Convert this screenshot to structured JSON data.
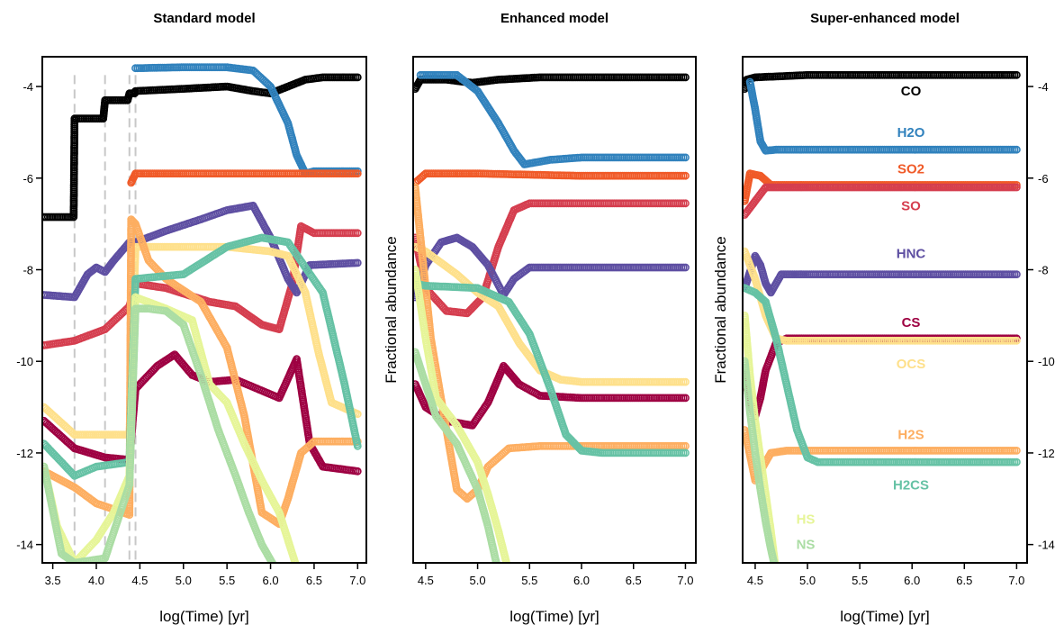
{
  "chart_data": [
    {
      "type": "line",
      "title": "Standard model",
      "xlabel": "log(Time) [yr]",
      "ylabel": "",
      "xlim": [
        3.38,
        7.1
      ],
      "ylim": [
        -14.4,
        -3.35
      ],
      "xticks": [
        3.5,
        4.0,
        4.5,
        5.0,
        5.5,
        6.0,
        6.5,
        7.0
      ],
      "xtick_labels": [
        "3.5",
        "4.0",
        "4.5",
        "5.0",
        "5.5",
        "6.0",
        "6.5",
        "7.0"
      ],
      "yticks": [
        -4,
        -6,
        -8,
        -10,
        -12,
        -14
      ],
      "ytick_labels": [
        "-4",
        "-6",
        "-8",
        "-10",
        "-12",
        "-14"
      ],
      "yaxis_side": "left",
      "vlines": [
        3.75,
        4.1,
        4.38,
        4.45
      ],
      "series": [
        {
          "species": "CO",
          "x": [
            3.4,
            3.74,
            3.75,
            4.08,
            4.1,
            4.36,
            4.38,
            4.44,
            4.45,
            5.0,
            5.5,
            5.8,
            6.0,
            6.2,
            6.4,
            6.6,
            7.0
          ],
          "y": [
            -6.85,
            -6.85,
            -4.7,
            -4.7,
            -4.3,
            -4.3,
            -4.15,
            -4.15,
            -4.1,
            -4.05,
            -4.0,
            -4.1,
            -4.15,
            -4.0,
            -3.85,
            -3.8,
            -3.8
          ]
        },
        {
          "species": "H2O",
          "x": [
            4.45,
            5.0,
            5.5,
            5.8,
            6.0,
            6.2,
            6.3,
            6.4,
            6.5,
            7.0
          ],
          "y": [
            -3.6,
            -3.58,
            -3.58,
            -3.65,
            -4.0,
            -4.8,
            -5.5,
            -5.9,
            -5.85,
            -5.85
          ]
        },
        {
          "species": "SO2",
          "x": [
            4.4,
            4.45,
            5.0,
            6.0,
            7.0
          ],
          "y": [
            -6.1,
            -5.9,
            -5.9,
            -5.9,
            -5.9
          ]
        },
        {
          "species": "SO",
          "x": [
            3.4,
            3.75,
            4.1,
            4.38,
            4.45,
            4.8,
            5.3,
            5.6,
            5.9,
            6.1,
            6.25,
            6.35,
            6.5,
            7.0
          ],
          "y": [
            -9.65,
            -9.55,
            -9.3,
            -8.8,
            -8.3,
            -8.4,
            -8.7,
            -8.8,
            -9.2,
            -9.3,
            -8.3,
            -7.05,
            -7.2,
            -7.2
          ]
        },
        {
          "species": "HNC",
          "x": [
            3.4,
            3.75,
            3.9,
            4.0,
            4.1,
            4.2,
            4.38,
            4.45,
            4.8,
            5.2,
            5.5,
            5.8,
            6.0,
            6.2,
            6.3,
            6.45,
            7.0
          ],
          "y": [
            -8.55,
            -8.6,
            -8.1,
            -7.95,
            -8.05,
            -7.8,
            -7.4,
            -7.4,
            -7.15,
            -6.9,
            -6.7,
            -6.6,
            -7.3,
            -8.2,
            -8.5,
            -7.9,
            -7.85
          ]
        },
        {
          "species": "CS",
          "x": [
            3.4,
            3.75,
            4.1,
            4.38,
            4.45,
            4.7,
            4.9,
            5.1,
            5.3,
            5.6,
            5.85,
            6.1,
            6.3,
            6.45,
            6.6,
            7.0
          ],
          "y": [
            -11.3,
            -11.9,
            -12.1,
            -12.15,
            -10.6,
            -10.1,
            -9.85,
            -10.3,
            -10.45,
            -10.4,
            -10.6,
            -10.8,
            -9.95,
            -11.8,
            -12.3,
            -12.4
          ]
        },
        {
          "species": "OCS",
          "x": [
            3.4,
            3.75,
            4.1,
            4.38,
            4.45,
            5.0,
            5.5,
            6.0,
            6.2,
            6.4,
            6.55,
            6.7,
            7.0
          ],
          "y": [
            -11.0,
            -11.6,
            -11.6,
            -11.6,
            -7.5,
            -7.5,
            -7.5,
            -7.6,
            -7.7,
            -8.5,
            -9.8,
            -10.9,
            -11.15
          ]
        },
        {
          "species": "H2S",
          "x": [
            3.4,
            3.75,
            4.0,
            4.38,
            4.4,
            4.45,
            4.6,
            4.8,
            5.2,
            5.5,
            5.7,
            5.9,
            6.1,
            6.2,
            6.35,
            6.5,
            7.0
          ],
          "y": [
            -12.4,
            -12.75,
            -13.1,
            -13.35,
            -6.9,
            -7.0,
            -7.8,
            -8.2,
            -8.7,
            -9.7,
            -11.2,
            -13.3,
            -13.55,
            -13.0,
            -12.0,
            -11.75,
            -11.75
          ]
        },
        {
          "species": "H2CS",
          "x": [
            3.4,
            3.75,
            4.0,
            4.38,
            4.45,
            5.0,
            5.5,
            5.9,
            6.2,
            6.6,
            6.85,
            7.0
          ],
          "y": [
            -11.8,
            -12.5,
            -12.3,
            -12.2,
            -8.2,
            -8.1,
            -7.5,
            -7.3,
            -7.4,
            -8.5,
            -10.5,
            -11.85
          ]
        },
        {
          "species": "HS",
          "x": [
            3.4,
            3.55,
            3.75,
            4.0,
            4.2,
            4.38,
            4.45,
            4.8,
            5.1,
            5.3,
            5.5,
            5.7,
            5.9,
            6.1,
            6.3
          ],
          "y": [
            -12.3,
            -13.6,
            -14.4,
            -13.9,
            -13.3,
            -12.5,
            -8.6,
            -8.85,
            -9.1,
            -10.5,
            -10.9,
            -11.8,
            -12.6,
            -13.3,
            -14.5
          ]
        },
        {
          "species": "NS",
          "x": [
            3.4,
            3.6,
            3.75,
            4.1,
            4.38,
            4.45,
            4.6,
            4.8,
            5.0,
            5.2,
            5.4,
            5.6,
            5.75,
            5.9,
            6.05,
            6.2
          ],
          "y": [
            -12.3,
            -14.2,
            -14.4,
            -14.3,
            -12.7,
            -8.85,
            -8.85,
            -8.9,
            -9.2,
            -10.3,
            -11.5,
            -12.5,
            -13.3,
            -14.0,
            -14.5,
            -14.6
          ]
        }
      ]
    },
    {
      "type": "line",
      "title": "Enhanced model",
      "xlabel": "log(Time) [yr]",
      "ylabel": "Fractional abundance",
      "xlim": [
        4.38,
        7.1
      ],
      "ylim": [
        -14.4,
        -3.35
      ],
      "xticks": [
        4.5,
        5.0,
        5.5,
        6.0,
        6.5,
        7.0
      ],
      "xtick_labels": [
        "4.5",
        "5.0",
        "5.5",
        "6.0",
        "6.5",
        "7.0"
      ],
      "yticks": [],
      "ytick_labels": [],
      "yaxis_side": "none",
      "vlines": [],
      "series": [
        {
          "species": "CO",
          "x": [
            4.4,
            4.45,
            4.7,
            4.95,
            5.2,
            5.6,
            6.0,
            7.0
          ],
          "y": [
            -4.05,
            -3.85,
            -3.85,
            -3.92,
            -3.85,
            -3.8,
            -3.8,
            -3.8
          ]
        },
        {
          "species": "H2O",
          "x": [
            4.45,
            4.8,
            5.0,
            5.2,
            5.35,
            5.45,
            5.7,
            6.0,
            7.0
          ],
          "y": [
            -3.75,
            -3.75,
            -4.1,
            -4.8,
            -5.4,
            -5.7,
            -5.6,
            -5.55,
            -5.55
          ]
        },
        {
          "species": "SO2",
          "x": [
            4.4,
            4.5,
            5.0,
            6.0,
            7.0
          ],
          "y": [
            -6.1,
            -5.9,
            -5.9,
            -5.95,
            -5.95
          ]
        },
        {
          "species": "SO",
          "x": [
            4.4,
            4.5,
            4.7,
            4.9,
            5.05,
            5.2,
            5.35,
            5.5,
            5.8,
            7.0
          ],
          "y": [
            -7.3,
            -8.4,
            -8.9,
            -8.95,
            -8.6,
            -7.5,
            -6.7,
            -6.55,
            -6.55,
            -6.55
          ]
        },
        {
          "species": "HNC",
          "x": [
            4.4,
            4.5,
            4.65,
            4.8,
            4.95,
            5.1,
            5.25,
            5.35,
            5.5,
            5.8,
            7.0
          ],
          "y": [
            -8.6,
            -7.9,
            -7.4,
            -7.3,
            -7.5,
            -7.9,
            -8.55,
            -8.2,
            -7.95,
            -7.95,
            -7.95
          ]
        },
        {
          "species": "CS",
          "x": [
            4.4,
            4.5,
            4.7,
            4.95,
            5.1,
            5.25,
            5.4,
            5.6,
            6.0,
            7.0
          ],
          "y": [
            -10.5,
            -11.0,
            -11.3,
            -11.4,
            -10.9,
            -10.1,
            -10.5,
            -10.75,
            -10.8,
            -10.8
          ]
        },
        {
          "species": "OCS",
          "x": [
            4.4,
            4.5,
            4.8,
            5.0,
            5.2,
            5.4,
            5.6,
            5.8,
            6.0,
            7.0
          ],
          "y": [
            -7.5,
            -7.6,
            -8.1,
            -8.5,
            -8.8,
            -9.6,
            -10.2,
            -10.4,
            -10.45,
            -10.45
          ]
        },
        {
          "species": "H2S",
          "x": [
            4.4,
            4.55,
            4.7,
            4.8,
            4.9,
            5.0,
            5.1,
            5.3,
            5.6,
            6.0,
            7.0
          ],
          "y": [
            -6.2,
            -9.5,
            -11.5,
            -12.8,
            -13.0,
            -12.8,
            -12.3,
            -11.9,
            -11.85,
            -11.85,
            -11.85
          ]
        },
        {
          "species": "H2CS",
          "x": [
            4.4,
            4.5,
            5.0,
            5.3,
            5.5,
            5.7,
            5.85,
            6.0,
            6.2,
            7.0
          ],
          "y": [
            -8.3,
            -8.35,
            -8.4,
            -8.7,
            -9.4,
            -10.6,
            -11.6,
            -11.95,
            -12.0,
            -12.0
          ]
        },
        {
          "species": "HS",
          "x": [
            4.4,
            4.5,
            4.6,
            4.8,
            5.0,
            5.1,
            5.2,
            5.3
          ],
          "y": [
            -8.0,
            -9.5,
            -10.8,
            -11.4,
            -12.2,
            -12.9,
            -13.7,
            -14.6
          ]
        },
        {
          "species": "NS",
          "x": [
            4.4,
            4.5,
            4.6,
            4.8,
            5.0,
            5.1,
            5.15,
            5.2
          ],
          "y": [
            -9.8,
            -10.5,
            -11.2,
            -11.8,
            -12.8,
            -13.6,
            -14.1,
            -14.6
          ]
        }
      ]
    },
    {
      "type": "line",
      "title": "Super-enhanced model",
      "xlabel": "log(Time) [yr]",
      "ylabel": "Fractional abundance",
      "xlim": [
        4.38,
        7.1
      ],
      "ylim": [
        -14.4,
        -3.35
      ],
      "xticks": [
        4.5,
        5.0,
        5.5,
        6.0,
        6.5,
        7.0
      ],
      "xtick_labels": [
        "4.5",
        "5.0",
        "5.5",
        "6.0",
        "6.5",
        "7.0"
      ],
      "yticks": [
        -4,
        -6,
        -8,
        -10,
        -12,
        -14
      ],
      "ytick_labels": [
        "-4",
        "-6",
        "-8",
        "-10",
        "-12",
        "-14"
      ],
      "yaxis_side": "right",
      "vlines": [],
      "series": [
        {
          "species": "CO",
          "x": [
            4.4,
            4.42,
            4.5,
            4.7,
            5.0,
            6.0,
            7.0
          ],
          "y": [
            -4.05,
            -3.85,
            -3.8,
            -3.78,
            -3.75,
            -3.75,
            -3.75
          ]
        },
        {
          "species": "H2O",
          "x": [
            4.45,
            4.5,
            4.55,
            4.6,
            4.7,
            5.0,
            7.0
          ],
          "y": [
            -3.9,
            -4.5,
            -5.2,
            -5.4,
            -5.38,
            -5.38,
            -5.38
          ]
        },
        {
          "species": "SO2",
          "x": [
            4.4,
            4.45,
            4.55,
            4.65,
            5.0,
            7.0
          ],
          "y": [
            -6.5,
            -5.9,
            -5.95,
            -6.15,
            -6.15,
            -6.15
          ]
        },
        {
          "species": "SO",
          "x": [
            4.4,
            4.5,
            4.6,
            4.8,
            5.0,
            7.0
          ],
          "y": [
            -6.8,
            -6.5,
            -6.2,
            -6.2,
            -6.2,
            -6.2
          ]
        },
        {
          "species": "HNC",
          "x": [
            4.4,
            4.5,
            4.55,
            4.6,
            4.65,
            4.75,
            5.0,
            7.0
          ],
          "y": [
            -8.4,
            -7.7,
            -7.9,
            -8.3,
            -8.5,
            -8.1,
            -8.1,
            -8.1
          ]
        },
        {
          "species": "CS",
          "x": [
            4.4,
            4.45,
            4.5,
            4.55,
            4.6,
            4.7,
            4.8,
            5.0,
            7.0
          ],
          "y": [
            -10.3,
            -10.9,
            -11.2,
            -10.8,
            -10.2,
            -9.6,
            -9.5,
            -9.5,
            -9.5
          ]
        },
        {
          "species": "OCS",
          "x": [
            4.4,
            4.5,
            4.6,
            4.7,
            4.8,
            5.0,
            7.0
          ],
          "y": [
            -7.6,
            -8.2,
            -9.0,
            -9.5,
            -9.55,
            -9.55,
            -9.55
          ]
        },
        {
          "species": "H2S",
          "x": [
            4.4,
            4.5,
            4.55,
            4.65,
            4.8,
            5.0,
            7.0
          ],
          "y": [
            -11.5,
            -12.6,
            -12.4,
            -12.0,
            -11.95,
            -11.95,
            -11.95
          ]
        },
        {
          "species": "H2CS",
          "x": [
            4.4,
            4.5,
            4.6,
            4.7,
            4.8,
            4.9,
            5.0,
            5.1,
            7.0
          ],
          "y": [
            -8.4,
            -8.5,
            -8.7,
            -9.5,
            -10.5,
            -11.5,
            -12.1,
            -12.2,
            -12.2
          ]
        },
        {
          "species": "HS",
          "x": [
            4.4,
            4.45,
            4.5,
            4.55,
            4.6,
            4.65,
            4.7
          ],
          "y": [
            -9.0,
            -10.3,
            -11.3,
            -12.1,
            -12.9,
            -13.7,
            -14.6
          ]
        },
        {
          "species": "NS",
          "x": [
            4.4,
            4.45,
            4.5,
            4.55,
            4.6,
            4.65,
            4.7
          ],
          "y": [
            -10.0,
            -11.1,
            -12.0,
            -12.8,
            -13.5,
            -14.1,
            -14.6
          ]
        }
      ]
    }
  ],
  "species_colors": {
    "CO": "#000000",
    "H2O": "#3182bd",
    "SO2": "#f05a28",
    "SO": "#d53e4f",
    "HNC": "#5e4fa2",
    "CS": "#9e0142",
    "OCS": "#fee08b",
    "H2S": "#fdae61",
    "H2CS": "#66c2a5",
    "HS": "#e6f598",
    "NS": "#abdda4"
  },
  "legend_labels": [
    {
      "text": "CO",
      "species": "CO",
      "y": -4.1
    },
    {
      "text": "H2O",
      "species": "H2O",
      "y": -5.0
    },
    {
      "text": "SO2",
      "species": "SO2",
      "y": -5.8
    },
    {
      "text": "SO",
      "species": "SO",
      "y": -6.6
    },
    {
      "text": "HNC",
      "species": "HNC",
      "y": -7.65
    },
    {
      "text": "CS",
      "species": "CS",
      "y": -9.15
    },
    {
      "text": "OCS",
      "species": "OCS",
      "y": -10.05
    },
    {
      "text": "H2S",
      "species": "H2S",
      "y": -11.6
    },
    {
      "text": "H2CS",
      "species": "H2CS",
      "y": -12.7
    },
    {
      "text": "HS",
      "species": "HS",
      "y": -13.45
    },
    {
      "text": "NS",
      "species": "NS",
      "y": -14.0
    }
  ]
}
